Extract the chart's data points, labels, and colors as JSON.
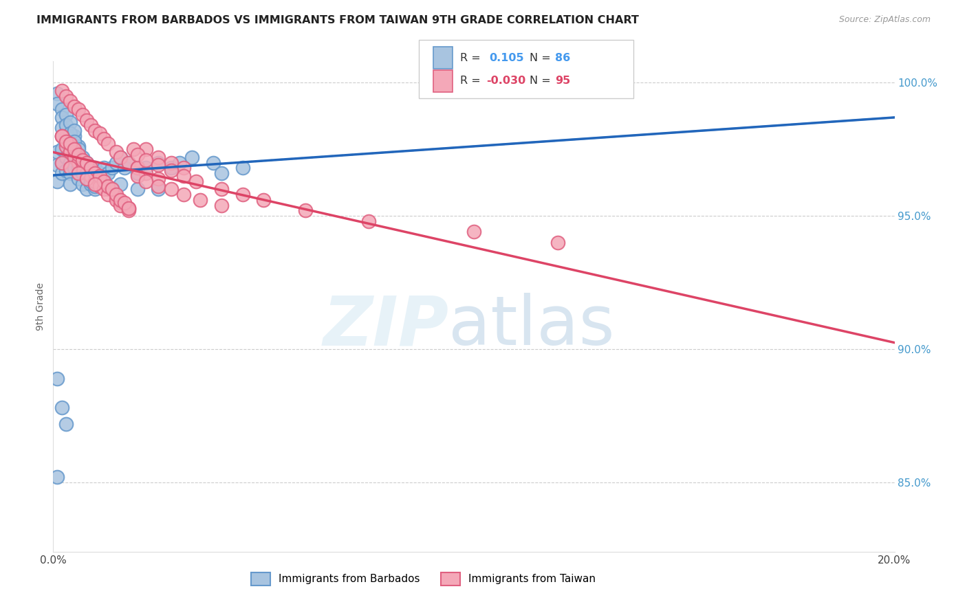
{
  "title": "IMMIGRANTS FROM BARBADOS VS IMMIGRANTS FROM TAIWAN 9TH GRADE CORRELATION CHART",
  "source": "Source: ZipAtlas.com",
  "ylabel": "9th Grade",
  "barbados_color": "#a8c4e0",
  "taiwan_color": "#f4a8b8",
  "barbados_edge": "#6699cc",
  "taiwan_edge": "#e06080",
  "trend_blue": "#2266bb",
  "trend_pink": "#dd4466",
  "trend_dashed_color": "#88bbdd",
  "barbados_label": "Immigrants from Barbados",
  "taiwan_label": "Immigrants from Taiwan",
  "x_min": 0.0,
  "x_max": 0.2,
  "y_min": 0.824,
  "y_max": 1.008,
  "barbados_x": [
    0.001,
    0.001,
    0.001,
    0.002,
    0.002,
    0.002,
    0.002,
    0.003,
    0.003,
    0.003,
    0.003,
    0.004,
    0.004,
    0.004,
    0.004,
    0.004,
    0.005,
    0.005,
    0.005,
    0.005,
    0.006,
    0.006,
    0.006,
    0.006,
    0.007,
    0.007,
    0.007,
    0.008,
    0.008,
    0.008,
    0.009,
    0.009,
    0.01,
    0.01,
    0.01,
    0.011,
    0.011,
    0.012,
    0.012,
    0.013,
    0.014,
    0.015,
    0.016,
    0.017,
    0.018,
    0.02,
    0.022,
    0.025,
    0.028,
    0.03,
    0.033,
    0.038,
    0.04,
    0.045,
    0.001,
    0.001,
    0.002,
    0.002,
    0.002,
    0.003,
    0.003,
    0.003,
    0.004,
    0.004,
    0.004,
    0.005,
    0.005,
    0.006,
    0.006,
    0.007,
    0.007,
    0.008,
    0.008,
    0.009,
    0.009,
    0.01,
    0.01,
    0.012,
    0.014,
    0.016,
    0.02,
    0.025,
    0.001,
    0.002,
    0.003,
    0.001
  ],
  "barbados_y": [
    0.974,
    0.969,
    0.963,
    0.98,
    0.975,
    0.97,
    0.966,
    0.982,
    0.977,
    0.972,
    0.967,
    0.978,
    0.974,
    0.97,
    0.966,
    0.962,
    0.98,
    0.976,
    0.972,
    0.968,
    0.976,
    0.972,
    0.968,
    0.964,
    0.97,
    0.966,
    0.962,
    0.968,
    0.964,
    0.96,
    0.966,
    0.962,
    0.968,
    0.964,
    0.96,
    0.966,
    0.962,
    0.968,
    0.964,
    0.966,
    0.968,
    0.97,
    0.972,
    0.968,
    0.97,
    0.966,
    0.968,
    0.97,
    0.968,
    0.97,
    0.972,
    0.97,
    0.966,
    0.968,
    0.996,
    0.992,
    0.99,
    0.987,
    0.983,
    0.988,
    0.984,
    0.98,
    0.985,
    0.981,
    0.977,
    0.982,
    0.978,
    0.975,
    0.971,
    0.972,
    0.968,
    0.97,
    0.966,
    0.967,
    0.963,
    0.965,
    0.961,
    0.963,
    0.96,
    0.962,
    0.96,
    0.96,
    0.889,
    0.878,
    0.872,
    0.852
  ],
  "taiwan_x": [
    0.002,
    0.003,
    0.004,
    0.005,
    0.006,
    0.007,
    0.008,
    0.009,
    0.01,
    0.011,
    0.012,
    0.013,
    0.015,
    0.016,
    0.018,
    0.02,
    0.022,
    0.025,
    0.028,
    0.031,
    0.002,
    0.003,
    0.004,
    0.005,
    0.006,
    0.007,
    0.008,
    0.009,
    0.01,
    0.011,
    0.012,
    0.013,
    0.015,
    0.016,
    0.018,
    0.02,
    0.022,
    0.025,
    0.003,
    0.004,
    0.005,
    0.006,
    0.007,
    0.008,
    0.009,
    0.01,
    0.011,
    0.012,
    0.013,
    0.015,
    0.016,
    0.018,
    0.02,
    0.022,
    0.025,
    0.028,
    0.031,
    0.035,
    0.04,
    0.002,
    0.003,
    0.004,
    0.005,
    0.006,
    0.007,
    0.008,
    0.009,
    0.01,
    0.011,
    0.012,
    0.013,
    0.014,
    0.015,
    0.016,
    0.017,
    0.018,
    0.019,
    0.02,
    0.022,
    0.025,
    0.028,
    0.031,
    0.034,
    0.04,
    0.045,
    0.05,
    0.06,
    0.075,
    0.1,
    0.12,
    0.002,
    0.004,
    0.006,
    0.008,
    0.01
  ],
  "taiwan_y": [
    0.997,
    0.995,
    0.993,
    0.991,
    0.99,
    0.988,
    0.986,
    0.984,
    0.982,
    0.981,
    0.979,
    0.977,
    0.974,
    0.972,
    0.97,
    0.968,
    0.975,
    0.972,
    0.97,
    0.968,
    0.98,
    0.978,
    0.976,
    0.974,
    0.972,
    0.97,
    0.968,
    0.967,
    0.965,
    0.963,
    0.961,
    0.96,
    0.957,
    0.955,
    0.953,
    0.968,
    0.966,
    0.964,
    0.976,
    0.974,
    0.972,
    0.97,
    0.968,
    0.966,
    0.965,
    0.963,
    0.961,
    0.96,
    0.958,
    0.956,
    0.954,
    0.952,
    0.965,
    0.963,
    0.961,
    0.96,
    0.958,
    0.956,
    0.954,
    0.98,
    0.978,
    0.977,
    0.975,
    0.973,
    0.971,
    0.97,
    0.968,
    0.966,
    0.965,
    0.963,
    0.961,
    0.96,
    0.958,
    0.956,
    0.955,
    0.953,
    0.975,
    0.973,
    0.971,
    0.969,
    0.967,
    0.965,
    0.963,
    0.96,
    0.958,
    0.956,
    0.952,
    0.948,
    0.944,
    0.94,
    0.97,
    0.968,
    0.966,
    0.964,
    0.962
  ]
}
